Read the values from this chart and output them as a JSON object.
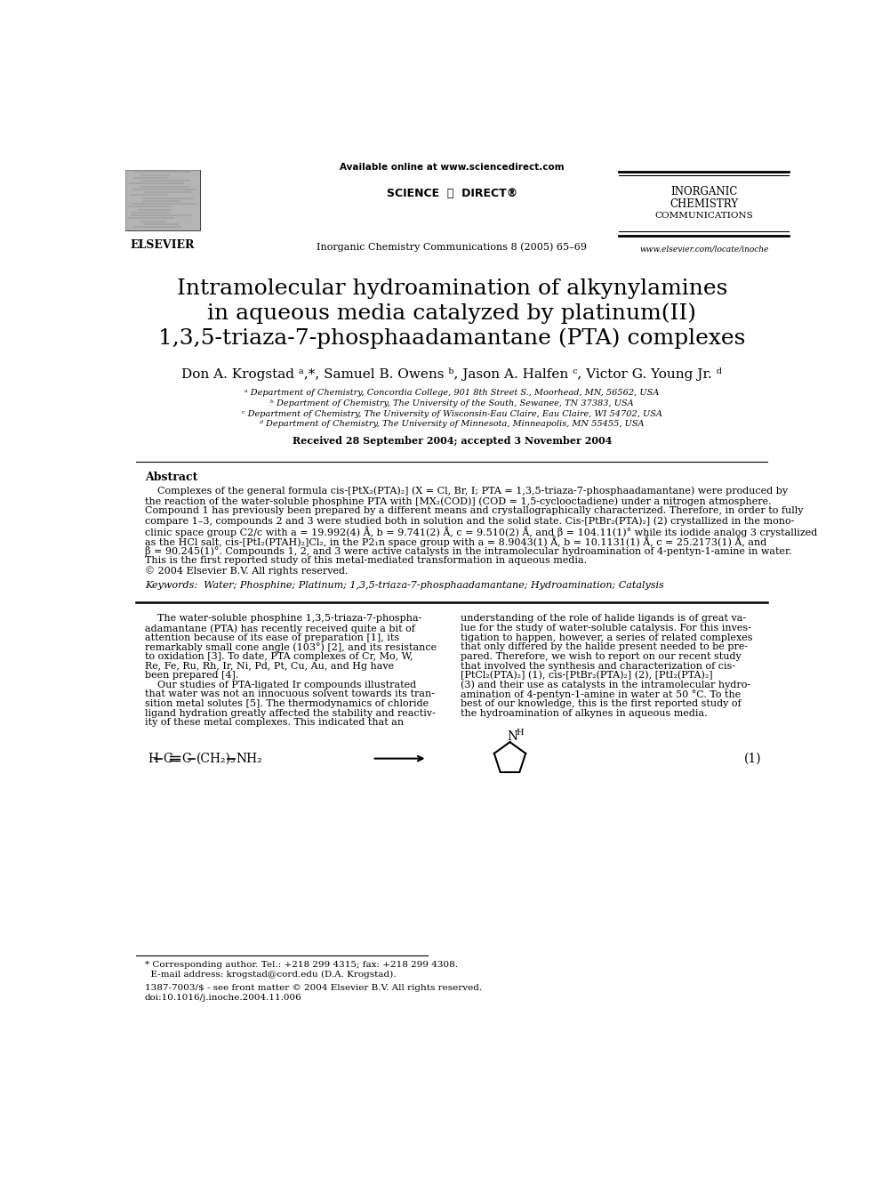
{
  "bg_color": "#ffffff",
  "title_lines": [
    "Intramolecular hydroamination of alkynylamines",
    "in aqueous media catalyzed by platinum(II)",
    "1,3,5-triaza-7-phosphaadamantane (PTA) complexes"
  ],
  "authors": "Don A. Krogstad ᵃ,*, Samuel B. Owens ᵇ, Jason A. Halfen ᶜ, Victor G. Young Jr. ᵈ",
  "affiliations": [
    "ᵃ Department of Chemistry, Concordia College, 901 8th Street S., Moorhead, MN, 56562, USA",
    "ᵇ Department of Chemistry, The University of the South, Sewanee, TN 37383, USA",
    "ᶜ Department of Chemistry, The University of Wisconsin-Eau Claire, Eau Claire, WI 54702, USA",
    "ᵈ Department of Chemistry, The University of Minnesota, Minneapolis, MN 55455, USA"
  ],
  "received": "Received 28 September 2004; accepted 3 November 2004",
  "journal_header": "Available online at www.sciencedirect.com",
  "journal_name": "Inorganic Chemistry Communications 8 (2005) 65–69",
  "journal_title_right": "INORGANIC\nCHEMISTRY\nCOMMUNICATIONS",
  "elsevier_text": "ELSEVIER",
  "website": "www.elsevier.com/locate/inoche",
  "abstract_title": "Abstract",
  "keywords": "Keywords:  Water; Phosphine; Platinum; 1,3,5-triaza-7-phosphaadamantane; Hydroamination; Catalysis",
  "footnote_corresp": "* Corresponding author. Tel.: +218 299 4315; fax: +218 299 4308.",
  "footnote_email": "  E-mail address: krogstad@cord.edu (D.A. Krogstad).",
  "footnote_issn": "1387-7003/$ - see front matter © 2004 Elsevier B.V. All rights reserved.",
  "footnote_doi": "doi:10.1016/j.inoche.2004.11.006",
  "equation_label": "(1)"
}
